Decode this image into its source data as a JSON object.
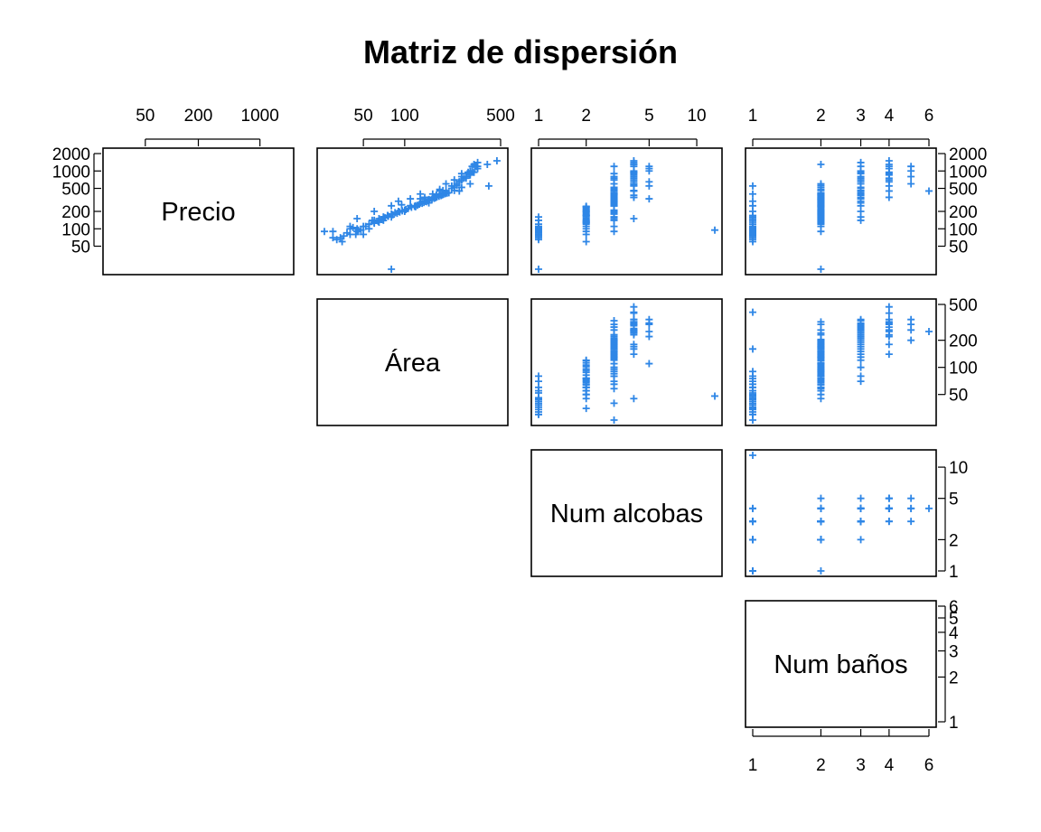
{
  "chart_data": {
    "type": "scatter",
    "title": "Matriz de dispersión",
    "log_scale": true,
    "marker": "+",
    "point_color": "#2E86E6",
    "variables": [
      {
        "name": "Precio",
        "range": [
          20,
          2000
        ],
        "ticks": [
          50,
          100,
          200,
          500,
          1000,
          2000
        ]
      },
      {
        "name": "Área",
        "range": [
          26,
          500
        ],
        "ticks": [
          50,
          100,
          200,
          500
        ]
      },
      {
        "name": "Num alcobas",
        "range": [
          1,
          13
        ],
        "ticks": [
          1,
          2,
          5,
          10
        ]
      },
      {
        "name": "Num baños",
        "range": [
          1,
          6
        ],
        "ticks": [
          1,
          2,
          3,
          4,
          5,
          6
        ]
      }
    ],
    "top_axis_ticks": {
      "Precio": [
        50,
        200,
        1000
      ],
      "Área": [
        50,
        100,
        500
      ],
      "Num alcobas": [
        1,
        2,
        5,
        10
      ],
      "Num baños": [
        1,
        2,
        3,
        4,
        6
      ]
    },
    "bottom_axis_ticks": {
      "Num baños": [
        1,
        2,
        3,
        4,
        6
      ]
    },
    "right_axis_ticks": {
      "Precio": [
        50,
        100,
        200,
        500,
        1000,
        2000
      ],
      "Área": [
        50,
        100,
        200,
        500
      ],
      "Num alcobas": [
        1,
        2,
        5,
        10
      ],
      "Num baños": [
        1,
        2,
        3,
        4,
        5,
        6
      ]
    },
    "left_axis_ticks": {
      "Precio": [
        50,
        100,
        200,
        500,
        1000,
        2000
      ]
    },
    "points": [
      [
        70,
        30,
        1,
        1
      ],
      [
        80,
        40,
        1,
        1
      ],
      [
        90,
        30,
        1,
        1
      ],
      [
        100,
        45,
        1,
        1
      ],
      [
        120,
        55,
        1,
        1
      ],
      [
        140,
        60,
        1,
        1
      ],
      [
        160,
        70,
        1,
        1
      ],
      [
        60,
        35,
        2,
        1
      ],
      [
        80,
        50,
        2,
        1
      ],
      [
        100,
        55,
        2,
        1
      ],
      [
        130,
        65,
        2,
        1
      ],
      [
        170,
        75,
        2,
        1
      ],
      [
        250,
        80,
        3,
        1
      ],
      [
        300,
        90,
        3,
        1
      ],
      [
        400,
        160,
        3,
        1
      ],
      [
        550,
        410,
        4,
        1
      ],
      [
        90,
        26,
        3,
        1
      ],
      [
        150,
        45,
        4,
        1
      ],
      [
        110,
        40,
        3,
        1
      ],
      [
        200,
        60,
        2,
        1
      ],
      [
        90,
        45,
        2,
        2
      ],
      [
        120,
        55,
        2,
        2
      ],
      [
        150,
        65,
        3,
        2
      ],
      [
        170,
        75,
        2,
        2
      ],
      [
        190,
        85,
        3,
        2
      ],
      [
        210,
        100,
        3,
        2
      ],
      [
        250,
        110,
        3,
        2
      ],
      [
        280,
        130,
        3,
        2
      ],
      [
        320,
        150,
        3,
        2
      ],
      [
        380,
        170,
        3,
        2
      ],
      [
        420,
        200,
        3,
        2
      ],
      [
        460,
        230,
        4,
        2
      ],
      [
        520,
        260,
        3,
        2
      ],
      [
        600,
        300,
        4,
        2
      ],
      [
        1300,
        320,
        4,
        2
      ],
      [
        20,
        80,
        1,
        2
      ],
      [
        130,
        60,
        2,
        2
      ],
      [
        160,
        70,
        3,
        2
      ],
      [
        200,
        90,
        3,
        2
      ],
      [
        240,
        120,
        2,
        2
      ],
      [
        300,
        140,
        3,
        2
      ],
      [
        350,
        160,
        4,
        2
      ],
      [
        110,
        50,
        2,
        2
      ],
      [
        140,
        58,
        3,
        2
      ],
      [
        180,
        80,
        3,
        2
      ],
      [
        260,
        95,
        3,
        2
      ],
      [
        330,
        110,
        5,
        2
      ],
      [
        400,
        130,
        3,
        2
      ],
      [
        480,
        180,
        3,
        2
      ],
      [
        560,
        240,
        4,
        2
      ],
      [
        200,
        100,
        3,
        3
      ],
      [
        250,
        120,
        3,
        3
      ],
      [
        300,
        140,
        3,
        3
      ],
      [
        350,
        160,
        3,
        3
      ],
      [
        400,
        180,
        3,
        3
      ],
      [
        450,
        200,
        3,
        3
      ],
      [
        500,
        220,
        3,
        3
      ],
      [
        600,
        240,
        4,
        3
      ],
      [
        700,
        260,
        4,
        3
      ],
      [
        800,
        280,
        3,
        3
      ],
      [
        900,
        300,
        3,
        3
      ],
      [
        1000,
        310,
        4,
        3
      ],
      [
        1200,
        330,
        3,
        3
      ],
      [
        1400,
        340,
        4,
        3
      ],
      [
        280,
        150,
        3,
        3
      ],
      [
        380,
        170,
        4,
        3
      ],
      [
        420,
        210,
        3,
        3
      ],
      [
        520,
        230,
        3,
        3
      ],
      [
        160,
        80,
        3,
        3
      ],
      [
        140,
        70,
        2,
        3
      ],
      [
        650,
        250,
        5,
        3
      ],
      [
        750,
        270,
        4,
        3
      ],
      [
        950,
        290,
        4,
        3
      ],
      [
        330,
        130,
        3,
        3
      ],
      [
        460,
        190,
        3,
        3
      ],
      [
        350,
        140,
        4,
        4
      ],
      [
        450,
        180,
        4,
        4
      ],
      [
        550,
        220,
        5,
        4
      ],
      [
        650,
        250,
        4,
        4
      ],
      [
        750,
        280,
        3,
        4
      ],
      [
        850,
        300,
        4,
        4
      ],
      [
        950,
        320,
        4,
        4
      ],
      [
        1100,
        340,
        5,
        4
      ],
      [
        1300,
        400,
        4,
        4
      ],
      [
        1500,
        470,
        4,
        4
      ],
      [
        700,
        230,
        3,
        4
      ],
      [
        900,
        260,
        4,
        4
      ],
      [
        1200,
        310,
        5,
        4
      ],
      [
        600,
        200,
        3,
        5
      ],
      [
        800,
        260,
        4,
        5
      ],
      [
        1000,
        300,
        5,
        5
      ],
      [
        1200,
        340,
        4,
        5
      ],
      [
        450,
        250,
        4,
        6
      ],
      [
        95,
        48,
        13,
        1
      ],
      [
        100,
        40,
        1,
        1
      ],
      [
        105,
        42,
        1,
        1
      ],
      [
        80,
        44,
        1,
        1
      ],
      [
        85,
        38,
        1,
        1
      ],
      [
        75,
        36,
        1,
        1
      ],
      [
        70,
        34,
        1,
        1
      ],
      [
        65,
        32,
        1,
        1
      ],
      [
        95,
        46,
        1,
        1
      ],
      [
        110,
        52,
        1,
        1
      ],
      [
        125,
        60,
        2,
        2
      ],
      [
        135,
        64,
        2,
        2
      ],
      [
        145,
        68,
        2,
        2
      ],
      [
        155,
        72,
        2,
        2
      ],
      [
        165,
        76,
        2,
        2
      ],
      [
        175,
        82,
        2,
        2
      ],
      [
        185,
        88,
        2,
        2
      ],
      [
        195,
        92,
        2,
        2
      ],
      [
        205,
        96,
        2,
        2
      ],
      [
        215,
        102,
        2,
        2
      ],
      [
        225,
        106,
        2,
        2
      ],
      [
        235,
        112,
        2,
        2
      ],
      [
        245,
        118,
        2,
        2
      ],
      [
        255,
        124,
        3,
        2
      ],
      [
        265,
        128,
        3,
        2
      ],
      [
        275,
        134,
        3,
        2
      ],
      [
        285,
        138,
        3,
        2
      ],
      [
        295,
        144,
        3,
        2
      ],
      [
        305,
        148,
        3,
        2
      ],
      [
        315,
        152,
        3,
        2
      ],
      [
        325,
        158,
        3,
        2
      ],
      [
        335,
        164,
        3,
        2
      ],
      [
        345,
        168,
        3,
        2
      ],
      [
        355,
        172,
        3,
        2
      ],
      [
        365,
        178,
        3,
        2
      ],
      [
        375,
        184,
        3,
        2
      ],
      [
        385,
        188,
        3,
        2
      ],
      [
        395,
        192,
        3,
        2
      ],
      [
        405,
        198,
        3,
        2
      ],
      [
        415,
        204,
        3,
        2
      ]
    ]
  }
}
